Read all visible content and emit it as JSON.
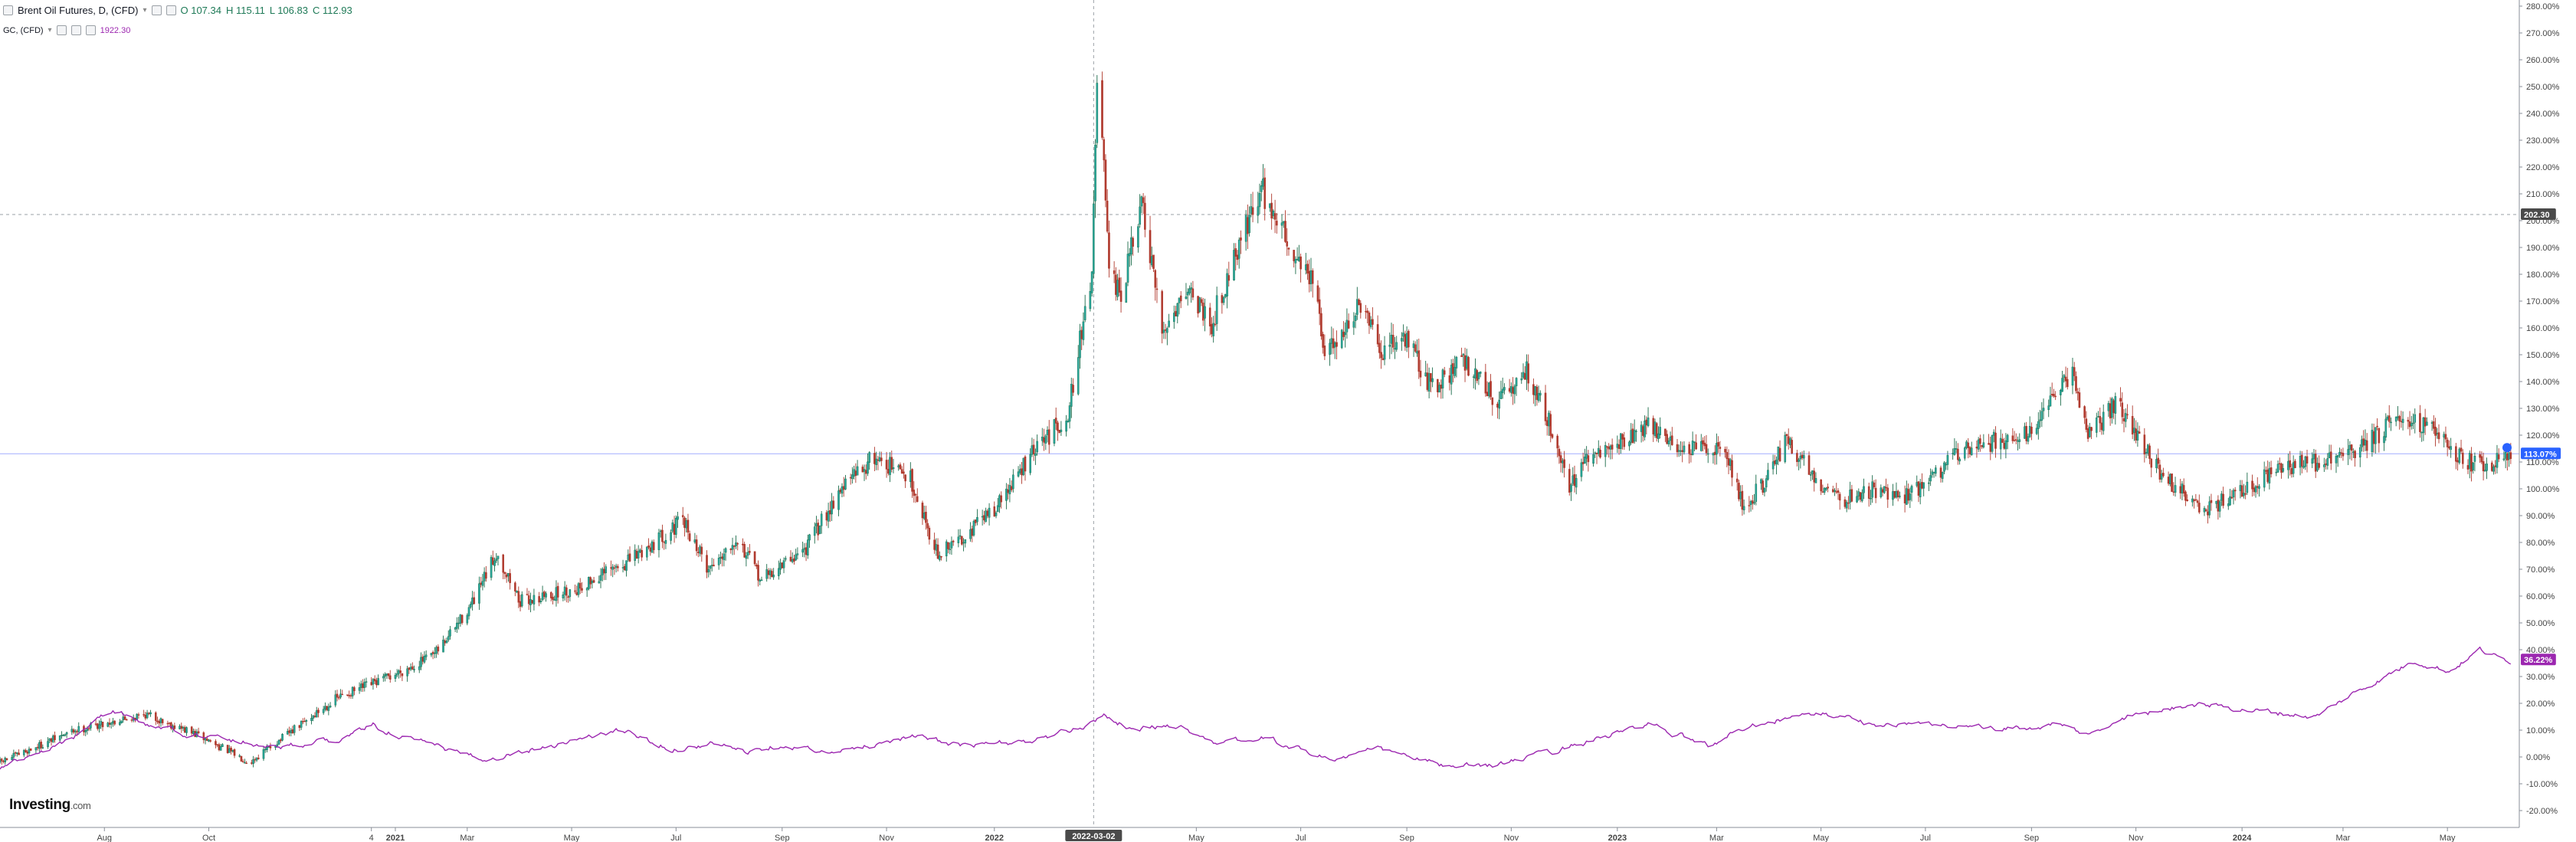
{
  "legend": {
    "main": {
      "symbol": "Brent Oil Futures, D, (CFD)",
      "open": "O 107.34",
      "high": "H 115.11",
      "low": "L 106.83",
      "close": "C 112.93"
    },
    "compare": {
      "symbol": "GC, (CFD)",
      "value": "1922.30"
    }
  },
  "logo": {
    "text": "Investing",
    "domain": ".com"
  },
  "crosshair": {
    "date_label": "2022-03-02",
    "price_label": "202.30"
  },
  "last_values": {
    "brent": "113.07%",
    "gold": "36.22%"
  },
  "colors": {
    "up": "#26a69a",
    "up_dark": "#1b6b4a",
    "down": "#b03a2e",
    "gold_line": "#9c27b0",
    "brent_tag": "#2962ff",
    "gold_tag": "#9c27b0",
    "crosshair_tag": "#4a4a4a",
    "grid": "#e0e3eb"
  },
  "chart_data": {
    "type": "line",
    "title": "Brent Oil Futures, D, (CFD)",
    "y_unit": "%",
    "ylim": [
      -25,
      285
    ],
    "y_ticks": [
      "280.00%",
      "270.00%",
      "260.00%",
      "250.00%",
      "240.00%",
      "230.00%",
      "220.00%",
      "210.00%",
      "200.00%",
      "190.00%",
      "180.00%",
      "170.00%",
      "160.00%",
      "150.00%",
      "140.00%",
      "130.00%",
      "120.00%",
      "110.00%",
      "100.00%",
      "90.00%",
      "80.00%",
      "70.00%",
      "60.00%",
      "50.00%",
      "40.00%",
      "30.00%",
      "20.00%",
      "10.00%",
      "0.00%",
      "-10.00%",
      "-20.00%"
    ],
    "x_ticks": [
      "Aug",
      "Oct",
      "4",
      "2021",
      "Mar",
      "May",
      "Jul",
      "Sep",
      "Nov",
      "2022",
      "May",
      "Jul",
      "Sep",
      "Nov",
      "2023",
      "Mar",
      "May",
      "Jul",
      "Sep",
      "Nov",
      "2024",
      "Mar",
      "May"
    ],
    "series": [
      {
        "name": "Brent Oil Futures, D, (CFD)",
        "style": "candlestick",
        "keypoints": [
          [
            "2020-06-01",
            -2
          ],
          [
            "2020-07-15",
            10
          ],
          [
            "2020-08-25",
            16
          ],
          [
            "2020-09-25",
            8
          ],
          [
            "2020-10-25",
            -2
          ],
          [
            "2020-11-15",
            8
          ],
          [
            "2020-12-15",
            22
          ],
          [
            "2021-01-15",
            30
          ],
          [
            "2021-02-10",
            38
          ],
          [
            "2021-03-05",
            58
          ],
          [
            "2021-03-18",
            76
          ],
          [
            "2021-04-01",
            58
          ],
          [
            "2021-05-01",
            62
          ],
          [
            "2021-06-01",
            72
          ],
          [
            "2021-07-05",
            88
          ],
          [
            "2021-07-20",
            70
          ],
          [
            "2021-08-05",
            82
          ],
          [
            "2021-08-20",
            66
          ],
          [
            "2021-09-15",
            78
          ],
          [
            "2021-10-05",
            100
          ],
          [
            "2021-10-25",
            112
          ],
          [
            "2021-11-15",
            104
          ],
          [
            "2021-12-01",
            75
          ],
          [
            "2021-12-15",
            82
          ],
          [
            "2022-01-05",
            94
          ],
          [
            "2022-01-25",
            113
          ],
          [
            "2022-02-15",
            128
          ],
          [
            "2022-03-01",
            182
          ],
          [
            "2022-03-04",
            248
          ],
          [
            "2022-03-07",
            232
          ],
          [
            "2022-03-11",
            178
          ],
          [
            "2022-03-18",
            172
          ],
          [
            "2022-03-30",
            206
          ],
          [
            "2022-04-11",
            158
          ],
          [
            "2022-04-25",
            176
          ],
          [
            "2022-05-10",
            162
          ],
          [
            "2022-05-25",
            190
          ],
          [
            "2022-06-08",
            212
          ],
          [
            "2022-06-25",
            190
          ],
          [
            "2022-07-08",
            178
          ],
          [
            "2022-07-15",
            150
          ],
          [
            "2022-08-05",
            168
          ],
          [
            "2022-08-17",
            150
          ],
          [
            "2022-08-30",
            158
          ],
          [
            "2022-09-15",
            138
          ],
          [
            "2022-10-05",
            148
          ],
          [
            "2022-10-25",
            132
          ],
          [
            "2022-11-10",
            144
          ],
          [
            "2022-11-25",
            122
          ],
          [
            "2022-12-05",
            101
          ],
          [
            "2022-12-15",
            110
          ],
          [
            "2023-01-05",
            118
          ],
          [
            "2023-01-20",
            124
          ],
          [
            "2023-02-10",
            114
          ],
          [
            "2023-03-05",
            116
          ],
          [
            "2023-03-17",
            93
          ],
          [
            "2023-04-01",
            105
          ],
          [
            "2023-04-10",
            118
          ],
          [
            "2023-05-01",
            102
          ],
          [
            "2023-05-15",
            96
          ],
          [
            "2023-06-01",
            100
          ],
          [
            "2023-06-15",
            96
          ],
          [
            "2023-07-01",
            102
          ],
          [
            "2023-07-25",
            116
          ],
          [
            "2023-08-15",
            118
          ],
          [
            "2023-09-01",
            122
          ],
          [
            "2023-09-25",
            143
          ],
          [
            "2023-10-05",
            120
          ],
          [
            "2023-10-20",
            132
          ],
          [
            "2023-11-15",
            106
          ],
          [
            "2023-12-10",
            92
          ],
          [
            "2024-01-05",
            100
          ],
          [
            "2024-01-25",
            108
          ],
          [
            "2024-02-15",
            110
          ],
          [
            "2024-03-10",
            114
          ],
          [
            "2024-04-05",
            128
          ],
          [
            "2024-04-25",
            122
          ],
          [
            "2024-05-05",
            112
          ],
          [
            "2024-05-25",
            108
          ],
          [
            "2024-06-07",
            113
          ]
        ]
      },
      {
        "name": "GC, (CFD)",
        "style": "line",
        "keypoints": [
          [
            "2020-06-01",
            -4
          ],
          [
            "2020-07-15",
            8
          ],
          [
            "2020-08-06",
            18
          ],
          [
            "2020-08-25",
            12
          ],
          [
            "2020-09-25",
            8
          ],
          [
            "2020-10-20",
            6
          ],
          [
            "2020-11-10",
            4
          ],
          [
            "2020-12-15",
            6
          ],
          [
            "2021-01-05",
            12
          ],
          [
            "2021-01-20",
            8
          ],
          [
            "2021-03-08",
            -1
          ],
          [
            "2021-04-15",
            4
          ],
          [
            "2021-05-30",
            10
          ],
          [
            "2021-06-28",
            3
          ],
          [
            "2021-07-25",
            5
          ],
          [
            "2021-08-10",
            2
          ],
          [
            "2021-09-01",
            5
          ],
          [
            "2021-09-30",
            1
          ],
          [
            "2021-11-15",
            8
          ],
          [
            "2021-12-15",
            4
          ],
          [
            "2022-01-25",
            6
          ],
          [
            "2022-02-20",
            10
          ],
          [
            "2022-03-08",
            16
          ],
          [
            "2022-03-25",
            10
          ],
          [
            "2022-04-18",
            12
          ],
          [
            "2022-05-15",
            5
          ],
          [
            "2022-06-10",
            7
          ],
          [
            "2022-07-20",
            -1
          ],
          [
            "2022-08-15",
            3
          ],
          [
            "2022-09-27",
            -4
          ],
          [
            "2022-10-20",
            -3
          ],
          [
            "2022-11-15",
            0
          ],
          [
            "2022-12-15",
            6
          ],
          [
            "2023-01-20",
            12
          ],
          [
            "2023-02-25",
            4
          ],
          [
            "2023-03-20",
            12
          ],
          [
            "2023-04-13",
            15
          ],
          [
            "2023-05-04",
            16
          ],
          [
            "2023-06-05",
            12
          ],
          [
            "2023-07-20",
            12
          ],
          [
            "2023-08-15",
            10
          ],
          [
            "2023-09-15",
            12
          ],
          [
            "2023-10-05",
            8
          ],
          [
            "2023-10-27",
            15
          ],
          [
            "2023-12-04",
            20
          ],
          [
            "2024-01-15",
            17
          ],
          [
            "2024-02-14",
            15
          ],
          [
            "2024-03-08",
            24
          ],
          [
            "2024-04-12",
            36
          ],
          [
            "2024-05-02",
            32
          ],
          [
            "2024-05-20",
            40
          ],
          [
            "2024-06-03",
            36
          ],
          [
            "2024-06-07",
            36
          ]
        ]
      }
    ]
  }
}
